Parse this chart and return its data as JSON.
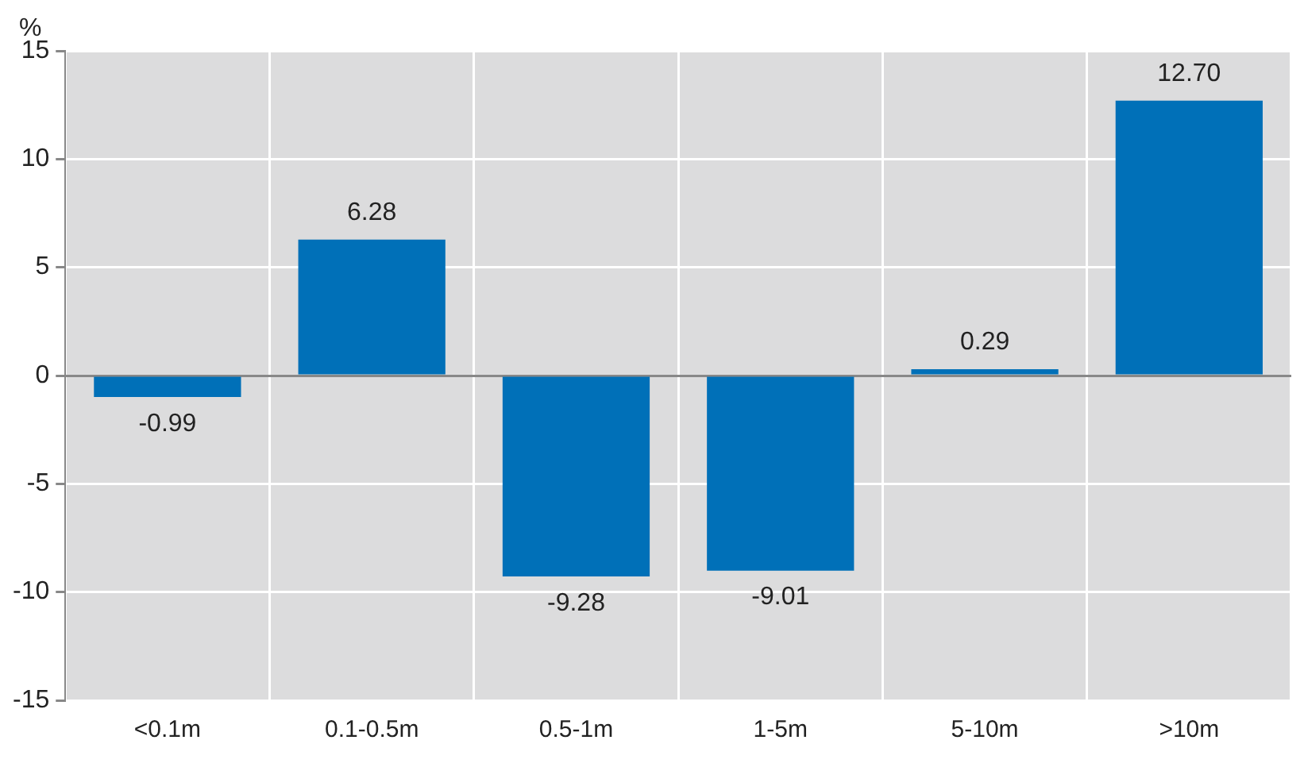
{
  "chart_data": {
    "type": "bar",
    "ylabel": "%",
    "categories": [
      "<0.1m",
      "0.1-0.5m",
      "0.5-1m",
      "1-5m",
      "5-10m",
      ">10m"
    ],
    "values": [
      -0.99,
      6.28,
      -9.28,
      -9.01,
      0.29,
      12.7
    ],
    "value_labels": [
      "-0.99",
      "6.28",
      "-9.28",
      "-9.01",
      "0.29",
      "12.70"
    ],
    "color": "#0070b8",
    "ylim": [
      -15,
      15
    ],
    "yticks": [
      -15,
      -10,
      -5,
      0,
      5,
      10,
      15
    ],
    "grid": true,
    "legend": false
  }
}
